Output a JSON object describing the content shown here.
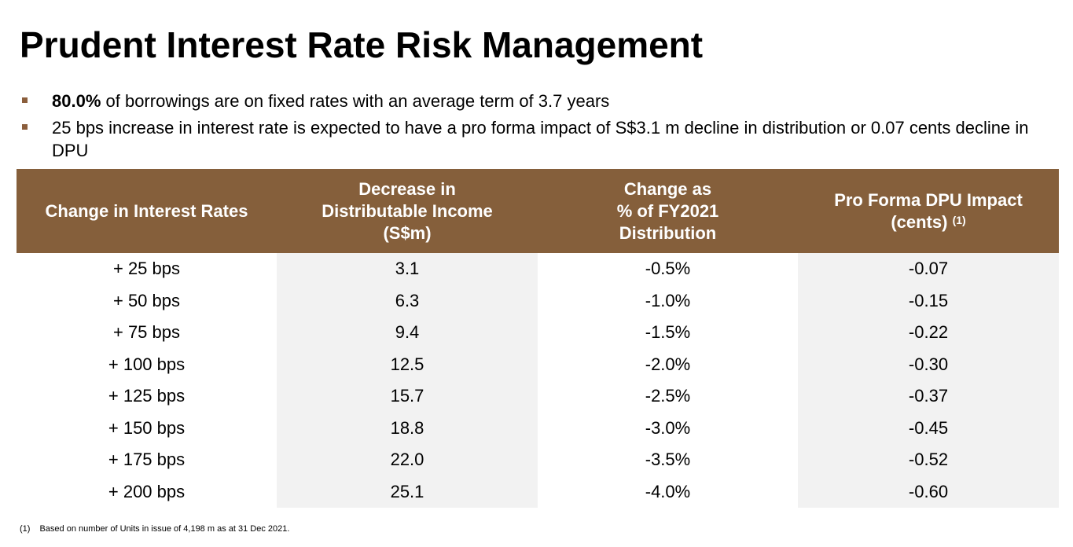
{
  "title": "Prudent Interest Rate Risk Management",
  "bullets": [
    {
      "bold": "80.0%",
      "text": " of borrowings are on fixed rates with an average term of 3.7 years"
    },
    {
      "bold": "",
      "text": "25 bps increase in interest rate is expected to have a pro forma impact of S$3.1 m decline in distribution or 0.07 cents decline in DPU"
    }
  ],
  "colors": {
    "header_bg": "#855f3b",
    "bullet_marker": "#8b5e3c",
    "shaded_column": "#f2f2f2"
  },
  "table": {
    "headers": [
      {
        "lines": [
          "Change in Interest Rates"
        ],
        "sup": ""
      },
      {
        "lines": [
          "Decrease in",
          "Distributable Income",
          "(S$m)"
        ],
        "sup": ""
      },
      {
        "lines": [
          "Change as",
          "% of FY2021",
          "Distribution"
        ],
        "sup": ""
      },
      {
        "lines": [
          "Pro Forma DPU Impact",
          "(cents)"
        ],
        "sup": "(1)"
      }
    ],
    "rows": [
      [
        "+ 25 bps",
        "3.1",
        "-0.5%",
        "-0.07"
      ],
      [
        "+ 50 bps",
        "6.3",
        "-1.0%",
        "-0.15"
      ],
      [
        "+ 75 bps",
        "9.4",
        "-1.5%",
        "-0.22"
      ],
      [
        "+ 100 bps",
        "12.5",
        "-2.0%",
        "-0.30"
      ],
      [
        "+ 125 bps",
        "15.7",
        "-2.5%",
        "-0.37"
      ],
      [
        "+ 150 bps",
        "18.8",
        "-3.0%",
        "-0.45"
      ],
      [
        "+ 175 bps",
        "22.0",
        "-3.5%",
        "-0.52"
      ],
      [
        "+ 200 bps",
        "25.1",
        "-4.0%",
        "-0.60"
      ]
    ]
  },
  "footnote": {
    "number": "(1)",
    "text": "Based on number of Units in issue of 4,198 m as at 31 Dec 2021."
  }
}
